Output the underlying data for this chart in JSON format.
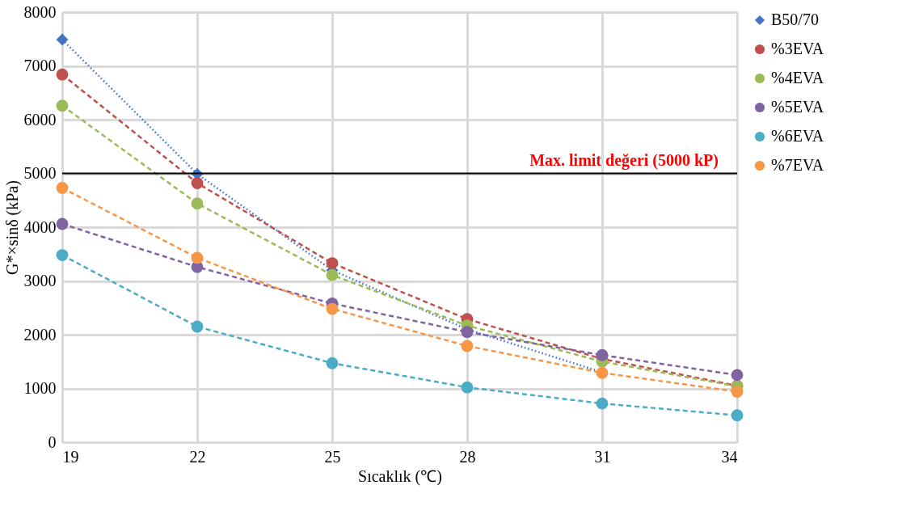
{
  "chart_data": {
    "type": "line",
    "xlabel": "Sıcaklık (℃)",
    "ylabel": "G*×sinδ (kPa)",
    "x": [
      19,
      22,
      25,
      28,
      31,
      34
    ],
    "xlim": [
      19,
      34
    ],
    "xticks": [
      19,
      22,
      25,
      28,
      31,
      34
    ],
    "ylim": [
      0,
      8000
    ],
    "yticks": [
      0,
      1000,
      2000,
      3000,
      4000,
      5000,
      6000,
      7000,
      8000
    ],
    "grid": true,
    "legend": "right",
    "series": [
      {
        "name": "B50/70",
        "color": "#4472c4",
        "marker": "diamond",
        "line_style": "dotted",
        "values": [
          7490,
          4990,
          3200,
          2100,
          1300,
          null
        ]
      },
      {
        "name": "%3EVA",
        "color": "#c0504d",
        "marker": "circle",
        "line_style": "dashed",
        "values": [
          6840,
          4820,
          3330,
          2290,
          1550,
          1050
        ]
      },
      {
        "name": "%4EVA",
        "color": "#9bbb59",
        "marker": "circle",
        "line_style": "dashed",
        "values": [
          6260,
          4440,
          3110,
          2170,
          1500,
          1040
        ]
      },
      {
        "name": "%5EVA",
        "color": "#8064a2",
        "marker": "circle",
        "line_style": "dashed",
        "values": [
          4060,
          3260,
          2580,
          2050,
          1620,
          1250
        ]
      },
      {
        "name": "%6EVA",
        "color": "#4bacc6",
        "marker": "circle",
        "line_style": "dashed",
        "values": [
          3480,
          2150,
          1470,
          1020,
          720,
          500
        ]
      },
      {
        "name": "%7EVA",
        "color": "#f79646",
        "marker": "circle",
        "line_style": "dashed",
        "values": [
          4730,
          3430,
          2480,
          1790,
          1290,
          940
        ]
      }
    ],
    "ref_lines": [
      {
        "axis": "y",
        "value": 5000,
        "label": "Max. limit değeri (5000 kP)",
        "color": "#000000"
      }
    ]
  }
}
